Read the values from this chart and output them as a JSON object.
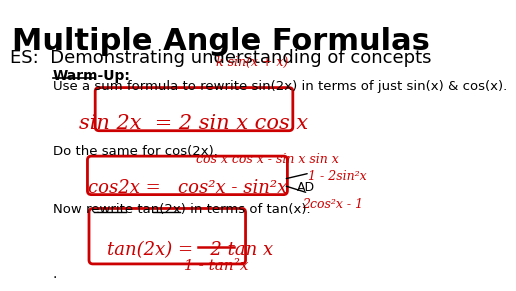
{
  "title": "Multiple Angle Formulas",
  "subtitle": "ES:  Demonstrating understanding of concepts",
  "bg_color": "#ffffff",
  "title_fontsize": 22,
  "subtitle_fontsize": 13,
  "warmup_label": "Warm-Up:",
  "warmup_text": "Use a sum formula to rewrite sin(2x) in terms of just sin(x) & cos(x).",
  "warmup_handwritten_above": "k sin(x + x)",
  "warmup_handwritten_box": "sin 2x  = 2 sin x cos x",
  "cos_prompt": "Do the same for cos(2x).",
  "cos_handwritten_above": "cos x cos x - sin x sin x",
  "cos_handwritten_box": "cos2x =   cos²x - sin²x",
  "cos_aside1": "1 - 2sin²x",
  "cos_aside2": "2cos²x - 1",
  "cos_aside_label": "AD",
  "tan_prompt": "Now rewrite tan(2x) in terms of tan(x).",
  "tan_box_line1": "tan(2x) =   2 tan x",
  "tan_box_line2": "1 - tan²x",
  "dot": ".",
  "red_color": "#cc0000",
  "black_color": "#000000"
}
